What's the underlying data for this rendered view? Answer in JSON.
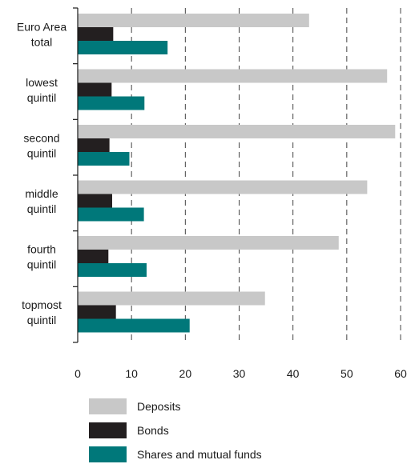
{
  "chart_data": {
    "type": "bar",
    "orientation": "horizontal",
    "categories": [
      [
        "Euro Area",
        "total"
      ],
      [
        "lowest",
        "quintil"
      ],
      [
        "second",
        "quintil"
      ],
      [
        "middle",
        "quintil"
      ],
      [
        "fourth",
        "quintil"
      ],
      [
        "topmost",
        "quintil"
      ]
    ],
    "series": [
      {
        "name": "Deposits",
        "color": "#c8c8c8",
        "values": [
          43.0,
          57.5,
          59.0,
          53.8,
          48.5,
          34.8
        ]
      },
      {
        "name": "Bonds",
        "color": "#231f20",
        "values": [
          6.6,
          6.3,
          5.9,
          6.4,
          5.7,
          7.1
        ]
      },
      {
        "name": "Shares and mutual funds",
        "color": "#00787a",
        "values": [
          16.7,
          12.4,
          9.6,
          12.3,
          12.8,
          20.8
        ]
      }
    ],
    "xticks": [
      0,
      10,
      20,
      30,
      40,
      50,
      60
    ],
    "xlim": [
      0,
      60
    ],
    "grid": "vertical dashed",
    "legend": "bottom",
    "title": "",
    "xlabel": "",
    "ylabel": ""
  }
}
